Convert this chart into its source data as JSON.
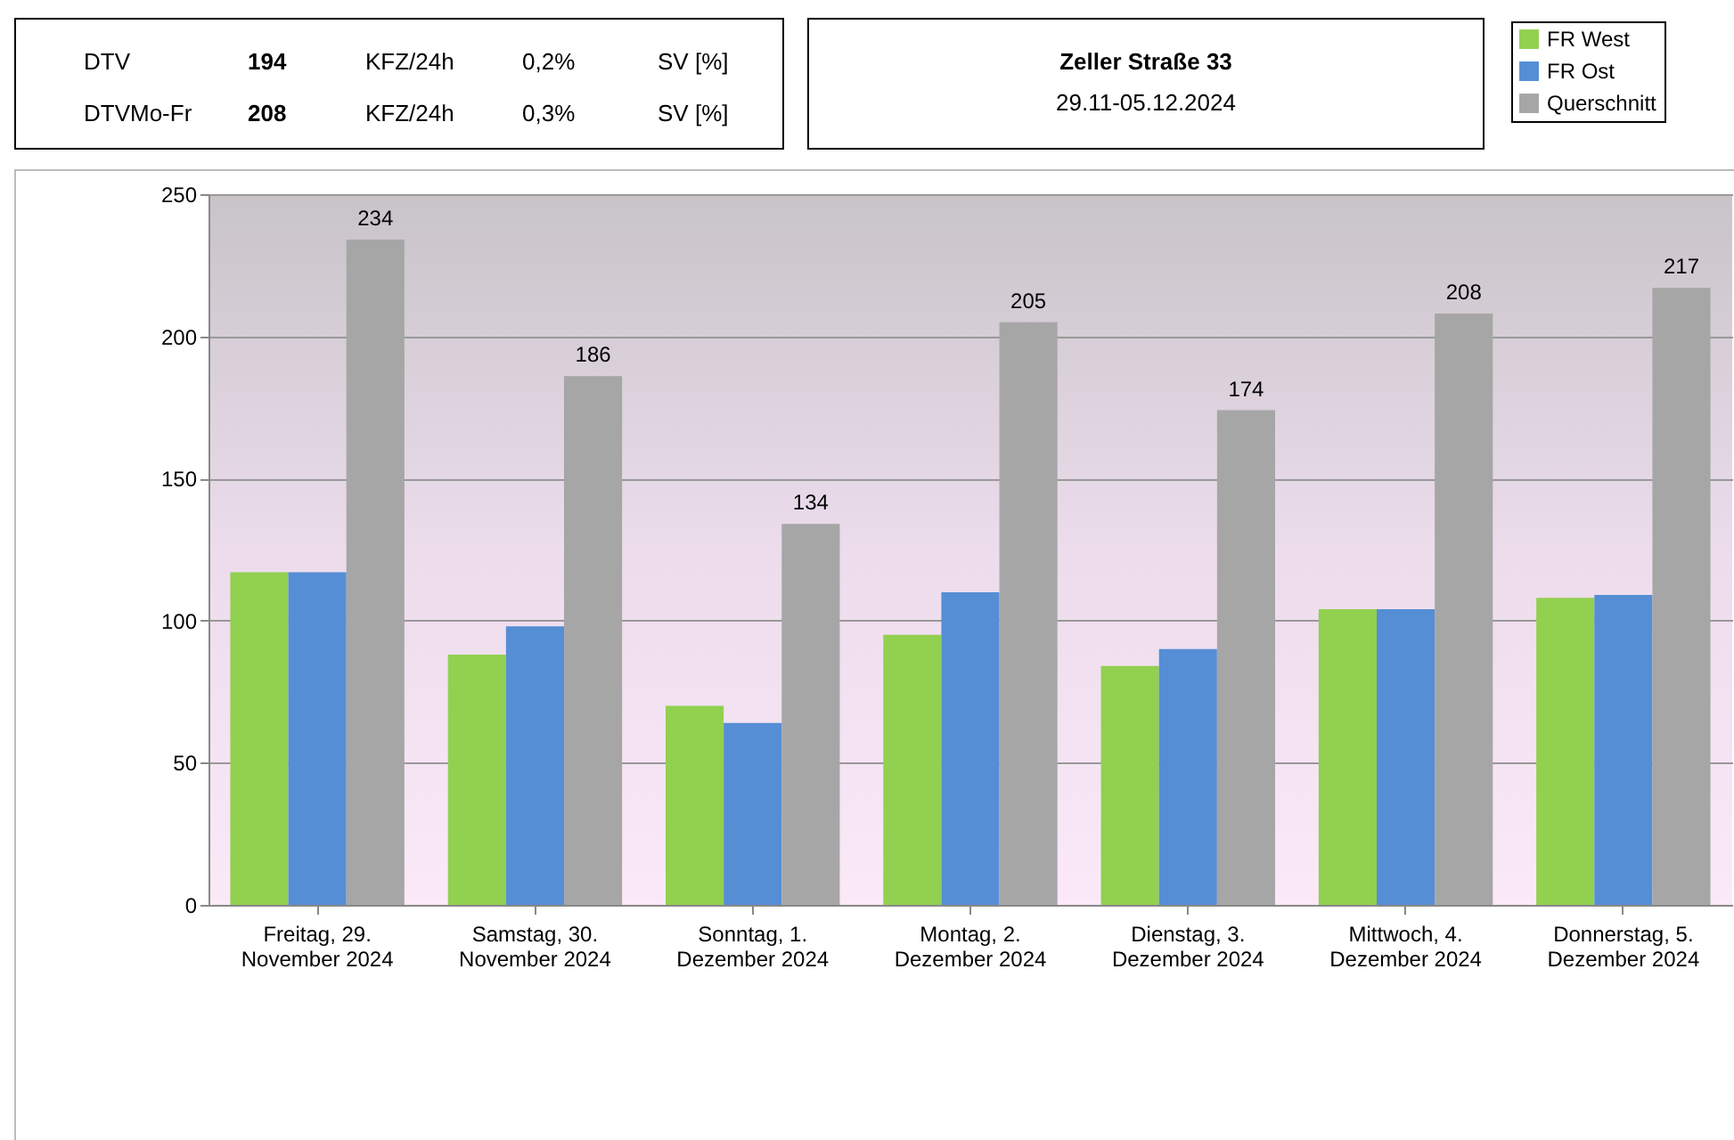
{
  "chart_data": {
    "type": "bar",
    "title": "Zeller Straße 33",
    "subtitle": "29.11-05.12.2024",
    "annotations": [
      "DTV",
      "194",
      "KFZ/24h",
      "0,2%",
      "SV [%]",
      "DTVMo-Fr",
      "208",
      "KFZ/24h",
      "0,3%",
      "SV [%]"
    ],
    "categories": [
      "Freitag, 29. November 2024",
      "Samstag, 30. November 2024",
      "Sonntag, 1. Dezember 2024",
      "Montag, 2. Dezember 2024",
      "Dienstag, 3. Dezember 2024",
      "Mittwoch, 4. Dezember 2024",
      "Donnerstag, 5. Dezember 2024"
    ],
    "series": [
      {
        "name": "FR  West",
        "color": "#92d050",
        "values": [
          117,
          88,
          70,
          95,
          84,
          104,
          108
        ]
      },
      {
        "name": "FR Ost",
        "color": "#558ed5",
        "values": [
          117,
          98,
          64,
          110,
          90,
          104,
          109
        ]
      },
      {
        "name": "Querschnitt",
        "color": "#a6a6a6",
        "values": [
          234,
          186,
          134,
          205,
          174,
          208,
          217
        ],
        "value_labels": [
          "234",
          "186",
          "134",
          "205",
          "174",
          "208",
          "217"
        ]
      }
    ],
    "ylim": [
      0,
      250
    ],
    "yticks": [
      0,
      50,
      100,
      150,
      200,
      250
    ],
    "grid": "y",
    "legend": "top right"
  }
}
